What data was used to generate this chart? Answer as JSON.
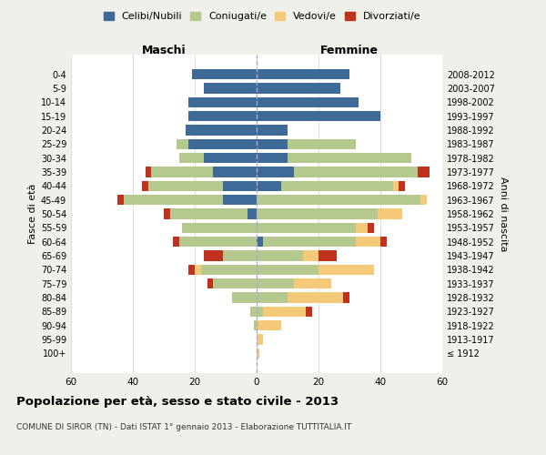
{
  "age_groups": [
    "100+",
    "95-99",
    "90-94",
    "85-89",
    "80-84",
    "75-79",
    "70-74",
    "65-69",
    "60-64",
    "55-59",
    "50-54",
    "45-49",
    "40-44",
    "35-39",
    "30-34",
    "25-29",
    "20-24",
    "15-19",
    "10-14",
    "5-9",
    "0-4"
  ],
  "birth_years": [
    "≤ 1912",
    "1913-1917",
    "1918-1922",
    "1923-1927",
    "1928-1932",
    "1933-1937",
    "1938-1942",
    "1943-1947",
    "1948-1952",
    "1953-1957",
    "1958-1962",
    "1963-1967",
    "1968-1972",
    "1973-1977",
    "1978-1982",
    "1983-1987",
    "1988-1992",
    "1993-1997",
    "1998-2002",
    "2003-2007",
    "2008-2012"
  ],
  "colors": {
    "celibi": "#3d6a96",
    "coniugati": "#b5c98e",
    "vedovi": "#f5c97a",
    "divorziati": "#c0311e"
  },
  "maschi": {
    "celibi": [
      0,
      0,
      0,
      0,
      0,
      0,
      0,
      0,
      0,
      0,
      3,
      11,
      11,
      14,
      17,
      22,
      23,
      22,
      22,
      17,
      21
    ],
    "coniugati": [
      0,
      0,
      1,
      2,
      8,
      14,
      18,
      11,
      25,
      24,
      25,
      32,
      24,
      20,
      8,
      4,
      0,
      0,
      0,
      0,
      0
    ],
    "vedovi": [
      0,
      0,
      0,
      0,
      0,
      0,
      2,
      0,
      0,
      0,
      0,
      0,
      0,
      0,
      0,
      0,
      0,
      0,
      0,
      0,
      0
    ],
    "divorziati": [
      0,
      0,
      0,
      0,
      0,
      2,
      2,
      6,
      2,
      0,
      2,
      2,
      2,
      2,
      0,
      0,
      0,
      0,
      0,
      0,
      0
    ]
  },
  "femmine": {
    "celibi": [
      0,
      0,
      0,
      0,
      0,
      0,
      0,
      0,
      2,
      0,
      0,
      0,
      8,
      12,
      10,
      10,
      10,
      40,
      33,
      27,
      30
    ],
    "coniugati": [
      0,
      0,
      0,
      2,
      10,
      12,
      20,
      15,
      30,
      32,
      39,
      53,
      36,
      40,
      40,
      22,
      0,
      0,
      0,
      0,
      0
    ],
    "vedovi": [
      1,
      2,
      8,
      14,
      18,
      12,
      18,
      5,
      8,
      4,
      8,
      2,
      2,
      0,
      0,
      0,
      0,
      0,
      0,
      0,
      0
    ],
    "divorziati": [
      0,
      0,
      0,
      2,
      2,
      0,
      0,
      6,
      2,
      2,
      0,
      0,
      2,
      4,
      0,
      0,
      0,
      0,
      0,
      0,
      0
    ]
  },
  "xlim": 60,
  "title": "Popolazione per età, sesso e stato civile - 2013",
  "subtitle": "COMUNE DI SIROR (TN) - Dati ISTAT 1° gennaio 2013 - Elaborazione TUTTITALIA.IT",
  "ylabel_left": "Fasce di età",
  "ylabel_right": "Anni di nascita",
  "xlabel_left": "Maschi",
  "xlabel_right": "Femmine",
  "bg_color": "#f0f0eb",
  "bar_bg": "#ffffff"
}
